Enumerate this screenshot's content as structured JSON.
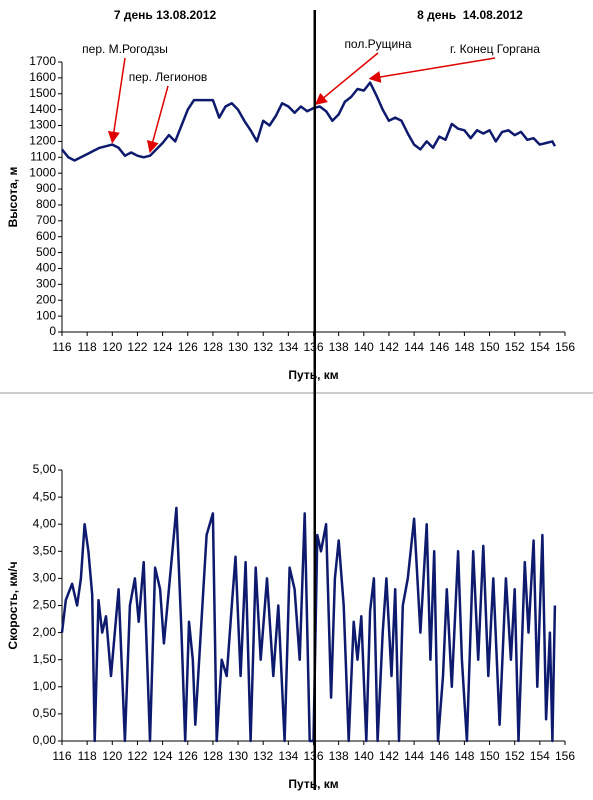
{
  "day_labels": [
    "7 день 13.08.2012",
    "8 день  14.08.2012"
  ],
  "day_boundary": 136.1,
  "chart_data": [
    {
      "type": "line",
      "ylabel": "Высота, м",
      "xlabel": "Путь, км",
      "color": "#0d1a6e",
      "xlim": [
        116,
        156
      ],
      "ylim": [
        0,
        1700
      ],
      "xticks": [
        116,
        118,
        120,
        122,
        124,
        126,
        128,
        130,
        132,
        134,
        136,
        138,
        140,
        142,
        144,
        146,
        148,
        150,
        152,
        154,
        156
      ],
      "yticks": [
        0,
        100,
        200,
        300,
        400,
        500,
        600,
        700,
        800,
        900,
        1000,
        1100,
        1200,
        1300,
        1400,
        1500,
        1600,
        1700
      ],
      "x": [
        116,
        116.5,
        117,
        117.5,
        118,
        118.5,
        119,
        119.5,
        120,
        120.5,
        121,
        121.5,
        122,
        122.5,
        123,
        123.5,
        124,
        124.5,
        125,
        125.5,
        126,
        126.5,
        127,
        127.5,
        128,
        128.5,
        129,
        129.5,
        130,
        130.5,
        131,
        131.5,
        132,
        132.5,
        133,
        133.5,
        134,
        134.5,
        135,
        135.5,
        136,
        136.5,
        137,
        137.5,
        138,
        138.5,
        139,
        139.5,
        140,
        140.5,
        141,
        141.5,
        142,
        142.5,
        143,
        143.5,
        144,
        144.5,
        145,
        145.5,
        146,
        146.5,
        147,
        147.5,
        148,
        148.5,
        149,
        149.5,
        150,
        150.5,
        151,
        151.5,
        152,
        152.5,
        153,
        153.5,
        154,
        154.5,
        155,
        155.2
      ],
      "values": [
        1150,
        1100,
        1080,
        1100,
        1120,
        1140,
        1160,
        1170,
        1180,
        1160,
        1110,
        1130,
        1110,
        1100,
        1110,
        1150,
        1190,
        1240,
        1200,
        1300,
        1400,
        1460,
        1460,
        1460,
        1460,
        1350,
        1420,
        1440,
        1400,
        1330,
        1270,
        1200,
        1330,
        1300,
        1360,
        1440,
        1420,
        1380,
        1420,
        1390,
        1410,
        1420,
        1390,
        1330,
        1370,
        1450,
        1480,
        1530,
        1520,
        1570,
        1490,
        1400,
        1330,
        1350,
        1330,
        1250,
        1180,
        1150,
        1200,
        1160,
        1230,
        1210,
        1310,
        1280,
        1270,
        1220,
        1270,
        1250,
        1270,
        1200,
        1260,
        1270,
        1240,
        1260,
        1210,
        1220,
        1180,
        1190,
        1200,
        1170
      ],
      "annotations": [
        {
          "text": "пер. М.Рогодзы",
          "x": 120,
          "y": 1170
        },
        {
          "text": "пер. Легионов",
          "x": 123,
          "y": 1110
        },
        {
          "text": "пол.Рущина",
          "x": 136.2,
          "y": 1410
        },
        {
          "text": "г. Конец Горгана",
          "x": 140.5,
          "y": 1570
        }
      ]
    },
    {
      "type": "line",
      "ylabel": "Скорость, км/ч",
      "xlabel": "Путь, км",
      "color": "#0d1a6e",
      "xlim": [
        116,
        156
      ],
      "ylim": [
        0,
        5
      ],
      "xticks": [
        116,
        118,
        120,
        122,
        124,
        126,
        128,
        130,
        132,
        134,
        136,
        138,
        140,
        142,
        144,
        146,
        148,
        150,
        152,
        154,
        156
      ],
      "yticks": [
        {
          "value": 0,
          "label": "0,00"
        },
        {
          "value": 0.5,
          "label": "0,50"
        },
        {
          "value": 1,
          "label": "1,00"
        },
        {
          "value": 1.5,
          "label": "1,50"
        },
        {
          "value": 2,
          "label": "2,00"
        },
        {
          "value": 2.5,
          "label": "2,50"
        },
        {
          "value": 3,
          "label": "3,00"
        },
        {
          "value": 3.5,
          "label": "3,50"
        },
        {
          "value": 4,
          "label": "4,00"
        },
        {
          "value": 4.5,
          "label": "4,50"
        },
        {
          "value": 5,
          "label": "5,00"
        }
      ],
      "x": [
        116,
        116.3,
        116.8,
        117.2,
        117.5,
        117.8,
        118.1,
        118.4,
        118.6,
        118.9,
        119.2,
        119.5,
        119.9,
        120.5,
        121,
        121.4,
        121.8,
        122.1,
        122.5,
        123,
        123.4,
        123.8,
        124.1,
        124.5,
        125.1,
        125.5,
        125.8,
        126.1,
        126.4,
        126.6,
        127.5,
        128,
        128.3,
        128.7,
        129.1,
        129.5,
        129.8,
        130.2,
        130.6,
        131,
        131.4,
        131.8,
        132.3,
        132.8,
        133.2,
        133.7,
        134.1,
        134.5,
        134.9,
        135.3,
        135.7,
        136,
        136.3,
        136.6,
        137,
        137.4,
        137.7,
        138,
        138.4,
        138.8,
        139.2,
        139.5,
        139.8,
        140.2,
        140.5,
        140.8,
        141.1,
        141.5,
        141.8,
        142.2,
        142.5,
        142.8,
        143.1,
        143.5,
        144,
        144.5,
        145,
        145.3,
        145.6,
        145.9,
        146.3,
        146.6,
        147,
        147.5,
        147.8,
        148.2,
        148.7,
        149.1,
        149.5,
        149.9,
        150.3,
        150.8,
        151.3,
        151.7,
        152,
        152.3,
        152.8,
        153.1,
        153.5,
        153.8,
        154.2,
        154.5,
        154.8,
        155,
        155.2
      ],
      "values": [
        2.0,
        2.6,
        2.9,
        2.5,
        3.0,
        4.0,
        3.5,
        2.7,
        0,
        2.6,
        2.0,
        2.3,
        1.2,
        2.8,
        0,
        2.5,
        3.0,
        2.2,
        3.3,
        0,
        3.2,
        2.8,
        1.8,
        2.8,
        4.3,
        2.0,
        0,
        2.2,
        1.5,
        0.3,
        3.8,
        4.2,
        0,
        1.5,
        1.2,
        2.5,
        3.4,
        1.2,
        3.3,
        0,
        3.2,
        1.5,
        3.0,
        1.2,
        2.5,
        0,
        3.2,
        2.8,
        1.5,
        4.2,
        0,
        0,
        3.8,
        3.5,
        4.0,
        0.8,
        3.0,
        3.7,
        2.5,
        0,
        2.2,
        1.5,
        2.3,
        0,
        2.4,
        3.0,
        0,
        2.0,
        3.0,
        1.2,
        2.8,
        0,
        2.5,
        3.0,
        4.1,
        2.0,
        4.0,
        1.5,
        3.5,
        0,
        1.2,
        2.8,
        1.0,
        3.5,
        1.5,
        0,
        3.5,
        1.5,
        3.6,
        1.2,
        3.0,
        0.3,
        3.0,
        1.5,
        2.8,
        0,
        3.3,
        2.0,
        3.7,
        1.0,
        3.8,
        0.4,
        2.0,
        0,
        2.5
      ]
    }
  ]
}
